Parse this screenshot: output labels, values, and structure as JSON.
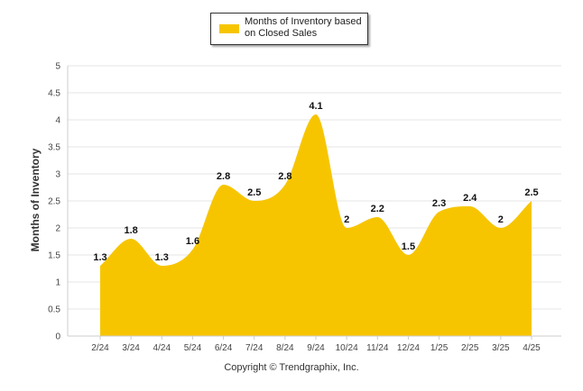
{
  "chart_data": {
    "type": "area",
    "categories": [
      "2/24",
      "3/24",
      "4/24",
      "5/24",
      "6/24",
      "7/24",
      "8/24",
      "9/24",
      "10/24",
      "11/24",
      "12/24",
      "1/25",
      "2/25",
      "3/25",
      "4/25"
    ],
    "series": [
      {
        "name": "Months of Inventory based on Closed Sales",
        "values": [
          1.3,
          1.8,
          1.3,
          1.6,
          2.8,
          2.5,
          2.8,
          4.1,
          2,
          2.2,
          1.5,
          2.3,
          2.4,
          2,
          2.5
        ],
        "color": "#F7C500"
      }
    ],
    "ylabel": "Months of Inventory",
    "xlabel": "",
    "ylim": [
      0,
      5
    ],
    "yticks": [
      0,
      0.5,
      1,
      1.5,
      2,
      2.5,
      3,
      3.5,
      4,
      4.5,
      5
    ],
    "grid": true,
    "legend_position": "top-center",
    "data_labels": true
  },
  "credit": "Copyright © Trendgraphix, Inc."
}
